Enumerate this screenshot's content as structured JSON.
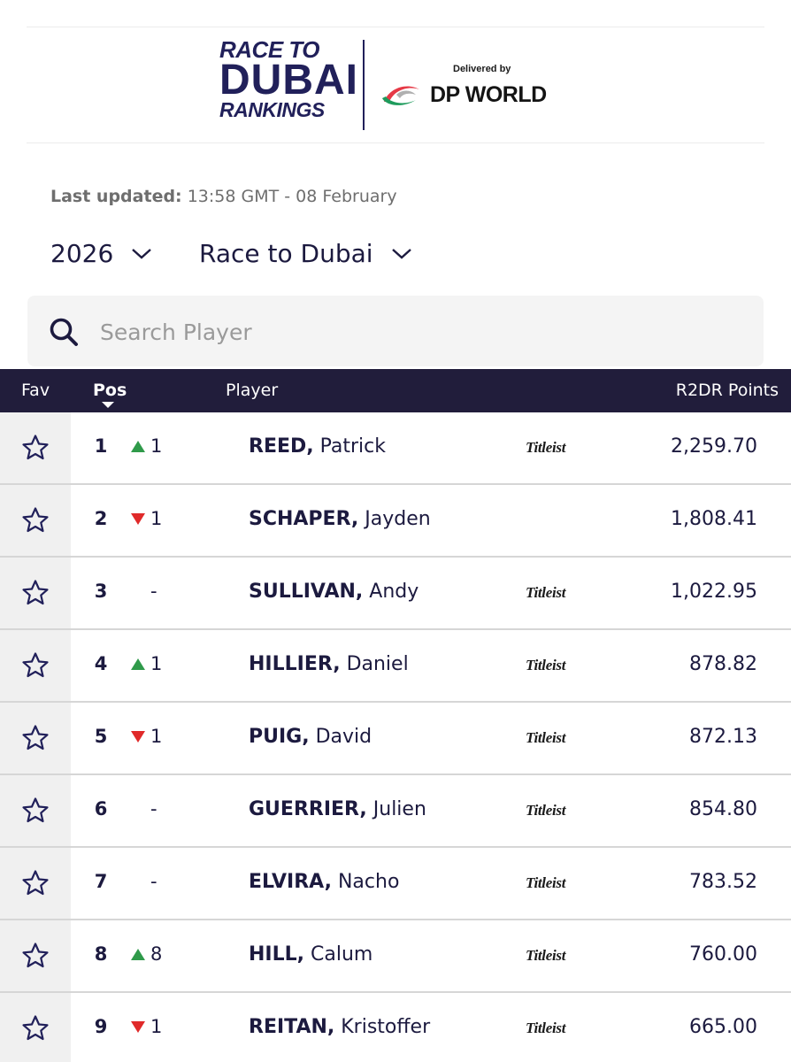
{
  "logo": {
    "line1": "RACE TO",
    "line2": "DUBAI",
    "line3": "RANKINGS",
    "delivered_by": "Delivered by",
    "sponsor_name": "DP WORLD"
  },
  "last_updated": {
    "label": "Last updated:",
    "value": "13:58 GMT - 08 February"
  },
  "filters": {
    "season": "2026",
    "tour": "Race to Dubai"
  },
  "search": {
    "placeholder": "Search Player"
  },
  "table": {
    "headers": {
      "fav": "Fav",
      "pos": "Pos",
      "player": "Player",
      "points": "R2DR Points"
    },
    "rows": [
      {
        "pos": "1",
        "move_dir": "up",
        "move": "1",
        "last": "REED,",
        "first": "Patrick",
        "sponsor": "Titleist",
        "points": "2,259.70"
      },
      {
        "pos": "2",
        "move_dir": "down",
        "move": "1",
        "last": "SCHAPER,",
        "first": "Jayden",
        "sponsor": "",
        "points": "1,808.41"
      },
      {
        "pos": "3",
        "move_dir": "none",
        "move": "-",
        "last": "SULLIVAN,",
        "first": "Andy",
        "sponsor": "Titleist",
        "points": "1,022.95"
      },
      {
        "pos": "4",
        "move_dir": "up",
        "move": "1",
        "last": "HILLIER,",
        "first": "Daniel",
        "sponsor": "Titleist",
        "points": "878.82"
      },
      {
        "pos": "5",
        "move_dir": "down",
        "move": "1",
        "last": "PUIG,",
        "first": "David",
        "sponsor": "Titleist",
        "points": "872.13"
      },
      {
        "pos": "6",
        "move_dir": "none",
        "move": "-",
        "last": "GUERRIER,",
        "first": "Julien",
        "sponsor": "Titleist",
        "points": "854.80"
      },
      {
        "pos": "7",
        "move_dir": "none",
        "move": "-",
        "last": "ELVIRA,",
        "first": "Nacho",
        "sponsor": "Titleist",
        "points": "783.52"
      },
      {
        "pos": "8",
        "move_dir": "up",
        "move": "8",
        "last": "HILL,",
        "first": "Calum",
        "sponsor": "Titleist",
        "points": "760.00"
      },
      {
        "pos": "9",
        "move_dir": "down",
        "move": "1",
        "last": "REITAN,",
        "first": "Kristoffer",
        "sponsor": "Titleist",
        "points": "665.00"
      }
    ]
  },
  "colors": {
    "navy": "#211d3b",
    "up": "#2f9a4a",
    "down": "#e02a2a"
  }
}
